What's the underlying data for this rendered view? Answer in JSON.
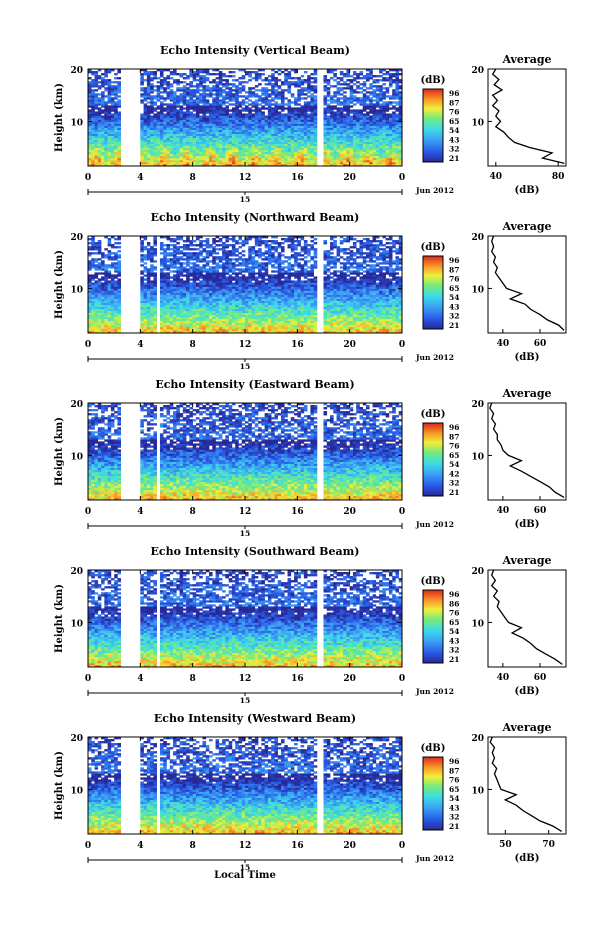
{
  "figure": {
    "xlabel": "Local Time",
    "date_label": "Jun 2012",
    "date_day": "15"
  },
  "chart_data": [
    {
      "type": "heatmap",
      "title": "Echo Intensity (Vertical Beam)",
      "ylabel": "Height (km)",
      "xticks": [
        "0",
        "4",
        "8",
        "12",
        "16",
        "20",
        "0"
      ],
      "yticks": [
        "20",
        "10"
      ],
      "xlim": [
        0,
        24
      ],
      "ylim": [
        1.5,
        20
      ],
      "data_gaps": [
        [
          2.5,
          4.0
        ],
        [
          17.6,
          18.1
        ]
      ],
      "colorbar": {
        "label": "(dB)",
        "ticks": [
          "96",
          "87",
          "76",
          "65",
          "54",
          "43",
          "32",
          "21"
        ]
      },
      "average": {
        "title": "Average",
        "xlabel": "(dB)",
        "xticks": [
          "40",
          "80"
        ],
        "yticks": [
          "20",
          "10"
        ],
        "xlim": [
          35,
          85
        ],
        "profile": [
          [
            84,
            2
          ],
          [
            70,
            3
          ],
          [
            76,
            4
          ],
          [
            62,
            5
          ],
          [
            52,
            6
          ],
          [
            48,
            7
          ],
          [
            45,
            8
          ],
          [
            40,
            9
          ],
          [
            43,
            10
          ],
          [
            40,
            11
          ],
          [
            42,
            12
          ],
          [
            38,
            13
          ],
          [
            41,
            14
          ],
          [
            38,
            15
          ],
          [
            44,
            16
          ],
          [
            39,
            17
          ],
          [
            42,
            18
          ],
          [
            38,
            19
          ],
          [
            40,
            20
          ]
        ]
      }
    },
    {
      "type": "heatmap",
      "title": "Echo Intensity (Northward Beam)",
      "ylabel": "Height (km)",
      "xticks": [
        "0",
        "4",
        "8",
        "12",
        "16",
        "20",
        "0"
      ],
      "yticks": [
        "20",
        "10"
      ],
      "xlim": [
        0,
        24
      ],
      "ylim": [
        1.5,
        20
      ],
      "data_gaps": [
        [
          2.5,
          4.0
        ],
        [
          5.2,
          5.6
        ],
        [
          17.6,
          18.1
        ]
      ],
      "colorbar": {
        "label": "(dB)",
        "ticks": [
          "96",
          "87",
          "76",
          "65",
          "54",
          "43",
          "32",
          "21"
        ]
      },
      "average": {
        "title": "Average",
        "xlabel": "(dB)",
        "xticks": [
          "40",
          "60"
        ],
        "yticks": [
          "20",
          "10"
        ],
        "xlim": [
          32,
          74
        ],
        "profile": [
          [
            73,
            2
          ],
          [
            70,
            3
          ],
          [
            64,
            4
          ],
          [
            60,
            5
          ],
          [
            55,
            6
          ],
          [
            52,
            7
          ],
          [
            44,
            8
          ],
          [
            50,
            9
          ],
          [
            42,
            10
          ],
          [
            40,
            11
          ],
          [
            38,
            12
          ],
          [
            36,
            13
          ],
          [
            37,
            14
          ],
          [
            35,
            15
          ],
          [
            36,
            16
          ],
          [
            34,
            17
          ],
          [
            35,
            18
          ],
          [
            34,
            19
          ],
          [
            35,
            20
          ]
        ]
      }
    },
    {
      "type": "heatmap",
      "title": "Echo Intensity (Eastward Beam)",
      "ylabel": "Height (km)",
      "xticks": [
        "0",
        "4",
        "8",
        "12",
        "16",
        "20",
        "0"
      ],
      "yticks": [
        "20",
        "10"
      ],
      "xlim": [
        0,
        24
      ],
      "ylim": [
        1.5,
        20
      ],
      "data_gaps": [
        [
          2.5,
          4.0
        ],
        [
          5.2,
          5.6
        ],
        [
          17.6,
          18.1
        ]
      ],
      "colorbar": {
        "label": "(dB)",
        "ticks": [
          "96",
          "87",
          "76",
          "65",
          "54",
          "42",
          "32",
          "21"
        ]
      },
      "average": {
        "title": "Average",
        "xlabel": "(dB)",
        "xticks": [
          "40",
          "60"
        ],
        "yticks": [
          "20",
          "10"
        ],
        "xlim": [
          32,
          74
        ],
        "profile": [
          [
            73,
            2
          ],
          [
            68,
            3
          ],
          [
            65,
            4
          ],
          [
            60,
            5
          ],
          [
            55,
            6
          ],
          [
            50,
            7
          ],
          [
            44,
            8
          ],
          [
            50,
            9
          ],
          [
            43,
            10
          ],
          [
            40,
            11
          ],
          [
            39,
            12
          ],
          [
            37,
            13
          ],
          [
            37,
            14
          ],
          [
            35,
            15
          ],
          [
            36,
            16
          ],
          [
            34,
            17
          ],
          [
            35,
            18
          ],
          [
            33,
            19
          ],
          [
            34,
            20
          ]
        ]
      }
    },
    {
      "type": "heatmap",
      "title": "Echo Intensity (Southward Beam)",
      "ylabel": "Height (km)",
      "xticks": [
        "0",
        "4",
        "8",
        "12",
        "16",
        "20",
        "0"
      ],
      "yticks": [
        "20",
        "10"
      ],
      "xlim": [
        0,
        24
      ],
      "ylim": [
        1.5,
        20
      ],
      "data_gaps": [
        [
          2.5,
          4.0
        ],
        [
          5.2,
          5.6
        ],
        [
          17.6,
          18.1
        ]
      ],
      "colorbar": {
        "label": "(dB)",
        "ticks": [
          "96",
          "86",
          "76",
          "65",
          "54",
          "43",
          "32",
          "21"
        ]
      },
      "average": {
        "title": "Average",
        "xlabel": "(dB)",
        "xticks": [
          "40",
          "60"
        ],
        "yticks": [
          "20",
          "10"
        ],
        "xlim": [
          32,
          74
        ],
        "profile": [
          [
            72,
            2
          ],
          [
            68,
            3
          ],
          [
            63,
            4
          ],
          [
            58,
            5
          ],
          [
            55,
            6
          ],
          [
            51,
            7
          ],
          [
            45,
            8
          ],
          [
            50,
            9
          ],
          [
            43,
            10
          ],
          [
            41,
            11
          ],
          [
            39,
            12
          ],
          [
            37,
            13
          ],
          [
            38,
            14
          ],
          [
            35,
            15
          ],
          [
            37,
            16
          ],
          [
            34,
            17
          ],
          [
            36,
            18
          ],
          [
            34,
            19
          ],
          [
            35,
            20
          ]
        ]
      }
    },
    {
      "type": "heatmap",
      "title": "Echo Intensity (Westward Beam)",
      "ylabel": "Height (km)",
      "xticks": [
        "0",
        "4",
        "8",
        "12",
        "16",
        "20",
        "0"
      ],
      "yticks": [
        "20",
        "10"
      ],
      "xlim": [
        0,
        24
      ],
      "ylim": [
        1.5,
        20
      ],
      "data_gaps": [
        [
          2.5,
          4.0
        ],
        [
          5.2,
          5.6
        ],
        [
          17.6,
          18.1
        ]
      ],
      "colorbar": {
        "label": "(dB)",
        "ticks": [
          "96",
          "87",
          "76",
          "65",
          "54",
          "43",
          "32",
          "21"
        ]
      },
      "average": {
        "title": "Average",
        "xlabel": "(dB)",
        "xticks": [
          "50",
          "70"
        ],
        "yticks": [
          "20",
          "10"
        ],
        "xlim": [
          42,
          78
        ],
        "profile": [
          [
            76,
            2
          ],
          [
            72,
            3
          ],
          [
            66,
            4
          ],
          [
            62,
            5
          ],
          [
            58,
            6
          ],
          [
            55,
            7
          ],
          [
            50,
            8
          ],
          [
            55,
            9
          ],
          [
            48,
            10
          ],
          [
            47,
            11
          ],
          [
            46,
            12
          ],
          [
            45,
            13
          ],
          [
            46,
            14
          ],
          [
            44,
            15
          ],
          [
            45,
            16
          ],
          [
            44,
            17
          ],
          [
            45,
            18
          ],
          [
            43,
            19
          ],
          [
            44,
            20
          ]
        ]
      }
    }
  ]
}
